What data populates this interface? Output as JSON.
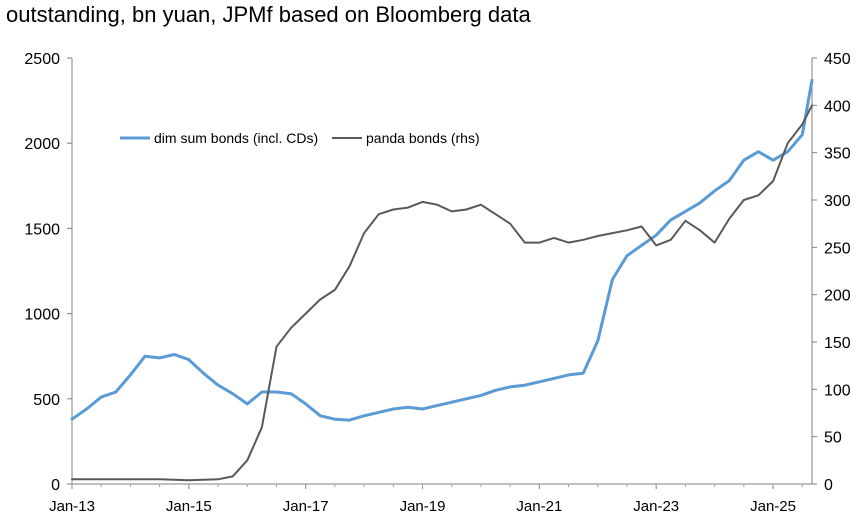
{
  "chart_data": {
    "type": "line",
    "title": "outstanding, bn yuan, JPMf based on Bloomberg data",
    "x_tick_labels": [
      "Jan-13",
      "Jan-15",
      "Jan-17",
      "Jan-19",
      "Jan-21",
      "Jan-23",
      "Jan-25"
    ],
    "x_tick_dates": [
      "2013-01",
      "2015-01",
      "2017-01",
      "2019-01",
      "2021-01",
      "2023-01",
      "2025-01"
    ],
    "x_range": [
      "2013-01",
      "2025-09"
    ],
    "y_left": {
      "range": [
        0,
        2500
      ],
      "ticks": [
        0,
        500,
        1000,
        1500,
        2000,
        2500
      ]
    },
    "y_right": {
      "range": [
        0,
        450
      ],
      "ticks": [
        0,
        50,
        100,
        150,
        200,
        250,
        300,
        350,
        400,
        450
      ]
    },
    "grid": false,
    "legend_position": "top-left",
    "colors": {
      "dim_sum": "#5b9bd5",
      "panda": "#595959"
    },
    "series": [
      {
        "name": "dim sum bonds (incl. CDs)",
        "axis": "left",
        "x": [
          "2013-01",
          "2013-04",
          "2013-07",
          "2013-10",
          "2014-01",
          "2014-04",
          "2014-07",
          "2014-10",
          "2015-01",
          "2015-04",
          "2015-07",
          "2015-10",
          "2016-01",
          "2016-04",
          "2016-07",
          "2016-10",
          "2017-01",
          "2017-04",
          "2017-07",
          "2017-10",
          "2018-01",
          "2018-04",
          "2018-07",
          "2018-10",
          "2019-01",
          "2019-04",
          "2019-07",
          "2019-10",
          "2020-01",
          "2020-04",
          "2020-07",
          "2020-10",
          "2021-01",
          "2021-04",
          "2021-07",
          "2021-10",
          "2022-01",
          "2022-04",
          "2022-07",
          "2022-10",
          "2023-01",
          "2023-04",
          "2023-07",
          "2023-10",
          "2024-01",
          "2024-04",
          "2024-07",
          "2024-10",
          "2025-01",
          "2025-04",
          "2025-07",
          "2025-09"
        ],
        "values": [
          380,
          440,
          510,
          540,
          640,
          750,
          740,
          760,
          730,
          650,
          580,
          530,
          470,
          540,
          540,
          530,
          470,
          400,
          380,
          375,
          400,
          420,
          440,
          450,
          440,
          460,
          480,
          500,
          520,
          550,
          570,
          580,
          600,
          620,
          640,
          650,
          840,
          1200,
          1340,
          1400,
          1460,
          1550,
          1600,
          1650,
          1720,
          1780,
          1900,
          1950,
          1900,
          1950,
          2050,
          2370
        ]
      },
      {
        "name": "panda bonds (rhs)",
        "axis": "right",
        "x": [
          "2013-01",
          "2013-07",
          "2014-01",
          "2014-07",
          "2015-01",
          "2015-07",
          "2015-10",
          "2016-01",
          "2016-04",
          "2016-07",
          "2016-10",
          "2017-01",
          "2017-04",
          "2017-07",
          "2017-10",
          "2018-01",
          "2018-04",
          "2018-07",
          "2018-10",
          "2019-01",
          "2019-04",
          "2019-07",
          "2019-10",
          "2020-01",
          "2020-04",
          "2020-07",
          "2020-10",
          "2021-01",
          "2021-04",
          "2021-07",
          "2021-10",
          "2022-01",
          "2022-04",
          "2022-07",
          "2022-10",
          "2023-01",
          "2023-04",
          "2023-07",
          "2023-10",
          "2024-01",
          "2024-04",
          "2024-07",
          "2024-10",
          "2025-01",
          "2025-04",
          "2025-07",
          "2025-09"
        ],
        "values": [
          5,
          5,
          5,
          5,
          4,
          5,
          8,
          25,
          60,
          145,
          165,
          180,
          195,
          205,
          230,
          265,
          285,
          290,
          292,
          298,
          295,
          288,
          290,
          295,
          285,
          275,
          255,
          255,
          260,
          255,
          258,
          262,
          265,
          268,
          272,
          252,
          258,
          278,
          268,
          255,
          280,
          300,
          305,
          320,
          360,
          380,
          400
        ]
      }
    ]
  }
}
